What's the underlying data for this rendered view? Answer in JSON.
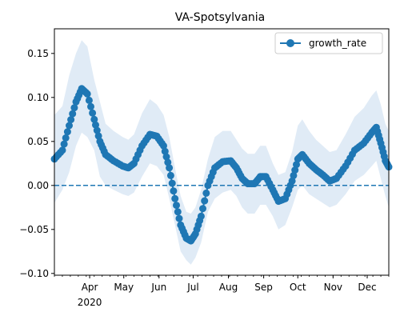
{
  "chart_data": {
    "type": "line",
    "title": "VA-Spotsylvania",
    "xlabel": "",
    "ylabel": "",
    "ylim": [
      -0.102,
      0.178
    ],
    "y_ticks": [
      -0.1,
      -0.05,
      0.0,
      0.05,
      0.1,
      0.15
    ],
    "y_tick_labels": [
      "−0.10",
      "−0.05",
      "0.00",
      "0.05",
      "0.10",
      "0.15"
    ],
    "x_range": [
      "2020-03-01",
      "2020-12-20"
    ],
    "x_ticks": [
      {
        "date": "2020-04-01",
        "label": "Apr",
        "sublabel": "2020"
      },
      {
        "date": "2020-05-01",
        "label": "May",
        "sublabel": ""
      },
      {
        "date": "2020-06-01",
        "label": "Jun",
        "sublabel": ""
      },
      {
        "date": "2020-07-01",
        "label": "Jul",
        "sublabel": ""
      },
      {
        "date": "2020-08-01",
        "label": "Aug",
        "sublabel": ""
      },
      {
        "date": "2020-09-01",
        "label": "Sep",
        "sublabel": ""
      },
      {
        "date": "2020-10-01",
        "label": "Oct",
        "sublabel": ""
      },
      {
        "date": "2020-11-01",
        "label": "Nov",
        "sublabel": ""
      },
      {
        "date": "2020-12-01",
        "label": "Dec",
        "sublabel": ""
      }
    ],
    "reference_line": {
      "y": 0.0,
      "style": "dashed"
    },
    "legend": {
      "position": "top-right",
      "entries": [
        "growth_rate"
      ]
    },
    "grid": false,
    "series": [
      {
        "name": "growth_rate",
        "color": "#1f77b4",
        "band_color": "#c6dbef",
        "points": [
          {
            "x": "2020-03-01",
            "y": 0.03,
            "lo": -0.02,
            "hi": 0.08
          },
          {
            "x": "2020-03-08",
            "y": 0.04,
            "lo": -0.005,
            "hi": 0.09
          },
          {
            "x": "2020-03-14",
            "y": 0.068,
            "lo": 0.015,
            "hi": 0.125
          },
          {
            "x": "2020-03-20",
            "y": 0.095,
            "lo": 0.045,
            "hi": 0.15
          },
          {
            "x": "2020-03-25",
            "y": 0.11,
            "lo": 0.06,
            "hi": 0.165
          },
          {
            "x": "2020-03-30",
            "y": 0.104,
            "lo": 0.055,
            "hi": 0.158
          },
          {
            "x": "2020-04-05",
            "y": 0.075,
            "lo": 0.04,
            "hi": 0.12
          },
          {
            "x": "2020-04-10",
            "y": 0.05,
            "lo": 0.01,
            "hi": 0.095
          },
          {
            "x": "2020-04-15",
            "y": 0.035,
            "lo": 0.0,
            "hi": 0.07
          },
          {
            "x": "2020-04-22",
            "y": 0.028,
            "lo": -0.005,
            "hi": 0.062
          },
          {
            "x": "2020-04-30",
            "y": 0.022,
            "lo": -0.01,
            "hi": 0.055
          },
          {
            "x": "2020-05-05",
            "y": 0.02,
            "lo": -0.012,
            "hi": 0.052
          },
          {
            "x": "2020-05-10",
            "y": 0.025,
            "lo": -0.008,
            "hi": 0.058
          },
          {
            "x": "2020-05-17",
            "y": 0.045,
            "lo": 0.01,
            "hi": 0.082
          },
          {
            "x": "2020-05-24",
            "y": 0.058,
            "lo": 0.025,
            "hi": 0.098
          },
          {
            "x": "2020-05-30",
            "y": 0.056,
            "lo": 0.022,
            "hi": 0.092
          },
          {
            "x": "2020-06-05",
            "y": 0.045,
            "lo": 0.012,
            "hi": 0.08
          },
          {
            "x": "2020-06-10",
            "y": 0.02,
            "lo": -0.015,
            "hi": 0.055
          },
          {
            "x": "2020-06-15",
            "y": -0.015,
            "lo": -0.045,
            "hi": 0.02
          },
          {
            "x": "2020-06-20",
            "y": -0.045,
            "lo": -0.075,
            "hi": -0.012
          },
          {
            "x": "2020-06-25",
            "y": -0.06,
            "lo": -0.085,
            "hi": -0.03
          },
          {
            "x": "2020-06-29",
            "y": -0.063,
            "lo": -0.09,
            "hi": -0.032
          },
          {
            "x": "2020-07-03",
            "y": -0.055,
            "lo": -0.082,
            "hi": -0.025
          },
          {
            "x": "2020-07-08",
            "y": -0.035,
            "lo": -0.065,
            "hi": -0.005
          },
          {
            "x": "2020-07-14",
            "y": 0.0,
            "lo": -0.03,
            "hi": 0.03
          },
          {
            "x": "2020-07-20",
            "y": 0.02,
            "lo": -0.015,
            "hi": 0.055
          },
          {
            "x": "2020-07-27",
            "y": 0.027,
            "lo": -0.008,
            "hi": 0.062
          },
          {
            "x": "2020-08-03",
            "y": 0.028,
            "lo": -0.005,
            "hi": 0.062
          },
          {
            "x": "2020-08-08",
            "y": 0.02,
            "lo": -0.012,
            "hi": 0.052
          },
          {
            "x": "2020-08-13",
            "y": 0.008,
            "lo": -0.025,
            "hi": 0.042
          },
          {
            "x": "2020-08-18",
            "y": 0.002,
            "lo": -0.032,
            "hi": 0.036
          },
          {
            "x": "2020-08-24",
            "y": 0.002,
            "lo": -0.032,
            "hi": 0.036
          },
          {
            "x": "2020-08-29",
            "y": 0.01,
            "lo": -0.022,
            "hi": 0.045
          },
          {
            "x": "2020-09-03",
            "y": 0.01,
            "lo": -0.022,
            "hi": 0.045
          },
          {
            "x": "2020-09-09",
            "y": -0.005,
            "lo": -0.035,
            "hi": 0.025
          },
          {
            "x": "2020-09-14",
            "y": -0.018,
            "lo": -0.05,
            "hi": 0.012
          },
          {
            "x": "2020-09-20",
            "y": -0.015,
            "lo": -0.045,
            "hi": 0.015
          },
          {
            "x": "2020-09-26",
            "y": 0.005,
            "lo": -0.025,
            "hi": 0.038
          },
          {
            "x": "2020-10-01",
            "y": 0.03,
            "lo": -0.005,
            "hi": 0.068
          },
          {
            "x": "2020-10-05",
            "y": 0.035,
            "lo": 0.0,
            "hi": 0.075
          },
          {
            "x": "2020-10-11",
            "y": 0.025,
            "lo": -0.01,
            "hi": 0.062
          },
          {
            "x": "2020-10-17",
            "y": 0.018,
            "lo": -0.015,
            "hi": 0.052
          },
          {
            "x": "2020-10-23",
            "y": 0.012,
            "lo": -0.02,
            "hi": 0.045
          },
          {
            "x": "2020-10-29",
            "y": 0.005,
            "lo": -0.025,
            "hi": 0.038
          },
          {
            "x": "2020-11-04",
            "y": 0.008,
            "lo": -0.022,
            "hi": 0.04
          },
          {
            "x": "2020-11-12",
            "y": 0.022,
            "lo": -0.01,
            "hi": 0.058
          },
          {
            "x": "2020-11-20",
            "y": 0.04,
            "lo": 0.005,
            "hi": 0.078
          },
          {
            "x": "2020-11-28",
            "y": 0.048,
            "lo": 0.012,
            "hi": 0.088
          },
          {
            "x": "2020-12-05",
            "y": 0.06,
            "lo": 0.022,
            "hi": 0.102
          },
          {
            "x": "2020-12-09",
            "y": 0.066,
            "lo": 0.028,
            "hi": 0.108
          },
          {
            "x": "2020-12-13",
            "y": 0.048,
            "lo": 0.008,
            "hi": 0.092
          },
          {
            "x": "2020-12-17",
            "y": 0.028,
            "lo": -0.012,
            "hi": 0.07
          },
          {
            "x": "2020-12-20",
            "y": 0.021,
            "lo": -0.025,
            "hi": 0.062
          }
        ]
      }
    ]
  }
}
